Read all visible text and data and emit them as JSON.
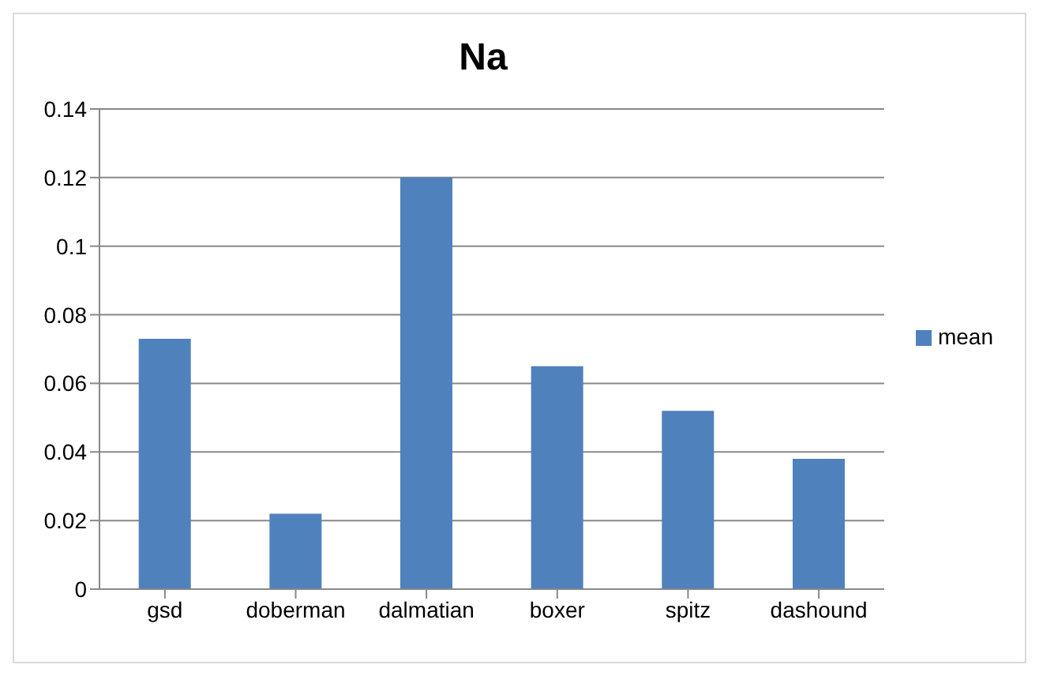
{
  "chart_data": {
    "type": "bar",
    "title": "Na",
    "categories": [
      "gsd",
      "doberman",
      "dalmatian",
      "boxer",
      "spitz",
      "dashound"
    ],
    "series": [
      {
        "name": "mean",
        "color": "#4f81bd",
        "values": [
          0.073,
          0.022,
          0.12,
          0.065,
          0.052,
          0.038
        ]
      }
    ],
    "ylim": [
      0,
      0.14
    ],
    "yticks": [
      0,
      0.02,
      0.04,
      0.06,
      0.08,
      0.1,
      0.12,
      0.14
    ],
    "grid": "y",
    "legend": "right"
  }
}
